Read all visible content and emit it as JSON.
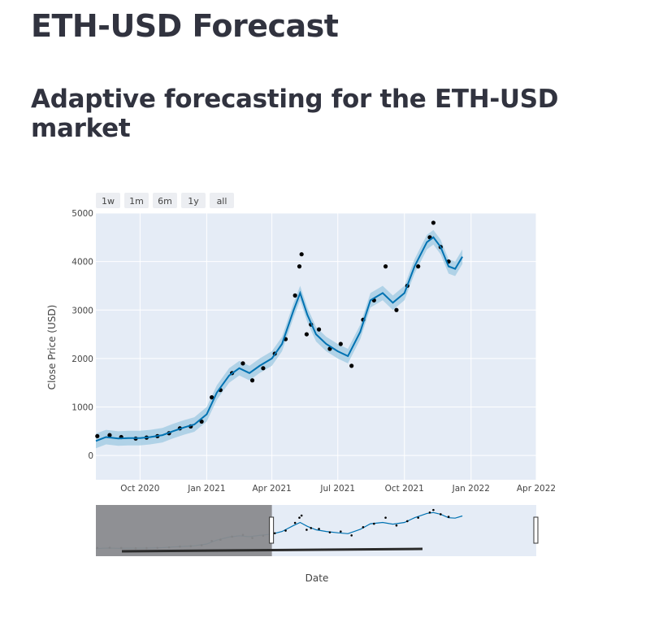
{
  "header": {
    "title": "ETH-USD Forecast",
    "subtitle": "Adaptive forecasting for the ETH-USD market"
  },
  "range_selector": [
    {
      "label": "1w"
    },
    {
      "label": "1m"
    },
    {
      "label": "6m"
    },
    {
      "label": "1y"
    },
    {
      "label": "all"
    }
  ],
  "colors": {
    "plot_bg": "#e5ecf6",
    "forecast_line": "#0072b2",
    "uncertainty_band": "#9ecae1",
    "actual_points": "#000000",
    "slider_mask": "#8a8b8e"
  },
  "chart_data": {
    "type": "line",
    "xlabel": "Date",
    "ylabel": "Close Price (USD)",
    "ylim": [
      -500,
      5000
    ],
    "y_ticks": [
      0,
      1000,
      2000,
      3000,
      4000,
      5000
    ],
    "x_ticks": [
      "Oct 2020",
      "Jan 2021",
      "Apr 2021",
      "Jul 2021",
      "Oct 2021",
      "Jan 2022",
      "Apr 2022"
    ],
    "x_tick_dates": [
      "2020-10-01",
      "2021-01-01",
      "2021-04-01",
      "2021-07-01",
      "2021-10-01",
      "2022-01-01",
      "2022-04-01"
    ],
    "xlim": [
      "2020-08-01",
      "2022-04-01"
    ],
    "grid": true,
    "series": [
      {
        "name": "",
        "kind": "forecast_line",
        "x": [
          "2020-08-01",
          "2020-08-15",
          "2020-09-01",
          "2020-09-15",
          "2020-10-01",
          "2020-10-15",
          "2020-11-01",
          "2020-11-15",
          "2020-12-01",
          "2020-12-15",
          "2021-01-01",
          "2021-01-15",
          "2021-02-01",
          "2021-02-15",
          "2021-03-01",
          "2021-03-15",
          "2021-04-01",
          "2021-04-15",
          "2021-05-01",
          "2021-05-10",
          "2021-05-20",
          "2021-06-01",
          "2021-06-15",
          "2021-07-01",
          "2021-07-15",
          "2021-08-01",
          "2021-08-15",
          "2021-09-01",
          "2021-09-15",
          "2021-10-01",
          "2021-10-15",
          "2021-11-01",
          "2021-11-10",
          "2021-11-20",
          "2021-12-01",
          "2021-12-10",
          "2021-12-20"
        ],
        "y": [
          300,
          380,
          350,
          360,
          360,
          380,
          420,
          500,
          580,
          640,
          850,
          1300,
          1650,
          1800,
          1700,
          1850,
          2000,
          2300,
          3000,
          3350,
          2900,
          2500,
          2300,
          2150,
          2050,
          2550,
          3200,
          3350,
          3150,
          3350,
          3900,
          4400,
          4500,
          4300,
          3900,
          3850,
          4100
        ]
      },
      {
        "name": "",
        "kind": "uncertainty_band",
        "x": [
          "2020-08-01",
          "2020-08-15",
          "2020-09-01",
          "2020-09-15",
          "2020-10-01",
          "2020-10-15",
          "2020-11-01",
          "2020-11-15",
          "2020-12-01",
          "2020-12-15",
          "2021-01-01",
          "2021-01-15",
          "2021-02-01",
          "2021-02-15",
          "2021-03-01",
          "2021-03-15",
          "2021-04-01",
          "2021-04-15",
          "2021-05-01",
          "2021-05-10",
          "2021-05-20",
          "2021-06-01",
          "2021-06-15",
          "2021-07-01",
          "2021-07-15",
          "2021-08-01",
          "2021-08-15",
          "2021-09-01",
          "2021-09-15",
          "2021-10-01",
          "2021-10-15",
          "2021-11-01",
          "2021-11-10",
          "2021-11-20",
          "2021-12-01",
          "2021-12-10",
          "2021-12-20"
        ],
        "lower": [
          150,
          230,
          200,
          210,
          210,
          230,
          270,
          350,
          430,
          490,
          700,
          1150,
          1500,
          1650,
          1550,
          1700,
          1850,
          2150,
          2850,
          3200,
          2750,
          2350,
          2150,
          2000,
          1900,
          2400,
          3050,
          3200,
          3000,
          3200,
          3750,
          4250,
          4350,
          4150,
          3750,
          3700,
          3950
        ],
        "upper": [
          450,
          530,
          500,
          510,
          510,
          530,
          570,
          650,
          730,
          790,
          1000,
          1450,
          1800,
          1950,
          1850,
          2000,
          2150,
          2450,
          3150,
          3500,
          3050,
          2650,
          2450,
          2300,
          2200,
          2700,
          3350,
          3500,
          3300,
          3500,
          4050,
          4550,
          4650,
          4450,
          4050,
          4000,
          4250
        ]
      },
      {
        "name": "",
        "kind": "actual_points",
        "x": [
          "2020-08-03",
          "2020-08-20",
          "2020-09-05",
          "2020-09-25",
          "2020-10-10",
          "2020-10-25",
          "2020-11-10",
          "2020-11-25",
          "2020-12-10",
          "2020-12-25",
          "2021-01-08",
          "2021-01-20",
          "2021-02-05",
          "2021-02-20",
          "2021-03-05",
          "2021-03-20",
          "2021-04-05",
          "2021-04-20",
          "2021-05-03",
          "2021-05-09",
          "2021-05-12",
          "2021-05-19",
          "2021-05-25",
          "2021-06-05",
          "2021-06-20",
          "2021-07-05",
          "2021-07-20",
          "2021-08-05",
          "2021-08-20",
          "2021-09-05",
          "2021-09-20",
          "2021-10-05",
          "2021-10-20",
          "2021-11-05",
          "2021-11-10",
          "2021-11-20",
          "2021-12-01"
        ],
        "y": [
          400,
          420,
          380,
          350,
          370,
          400,
          460,
          560,
          600,
          700,
          1200,
          1350,
          1700,
          1900,
          1550,
          1800,
          2100,
          2400,
          3300,
          3900,
          4150,
          2500,
          2700,
          2600,
          2200,
          2300,
          1850,
          2800,
          3200,
          3900,
          3000,
          3500,
          3900,
          4500,
          4800,
          4300,
          4000
        ]
      }
    ],
    "range_slider": {
      "selected_start": "2021-04-01",
      "selected_end": "2022-04-01"
    }
  }
}
